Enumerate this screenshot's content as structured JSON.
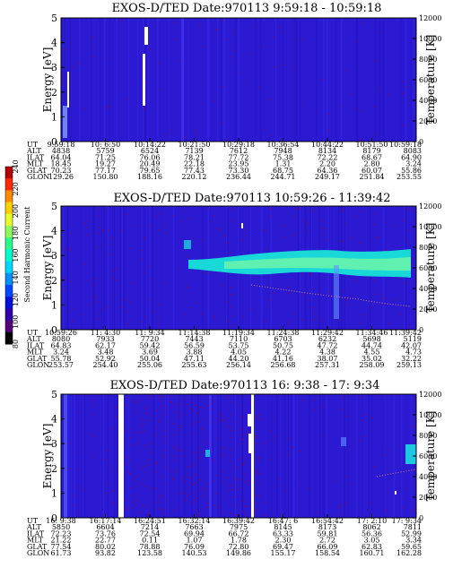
{
  "colorbar": {
    "label": "Second Harmonic Current",
    "ticks": [
      "240",
      "220",
      "200",
      "180",
      "160",
      "140",
      "120",
      "100",
      "80"
    ],
    "colors": [
      "#b40000",
      "#ff2a00",
      "#ff8a00",
      "#ffd000",
      "#eaff2a",
      "#8cff5a",
      "#2aff8c",
      "#00ffd0",
      "#00d8ff",
      "#0090ff",
      "#0048ff",
      "#0010d8",
      "#3000a8",
      "#55007a",
      "#000000"
    ]
  },
  "colors": {
    "background": "#2b1ad2",
    "stripe": "#3a2cf0",
    "noise": "#b00018",
    "cyan": "#20e8e8",
    "green": "#60ffa0",
    "white": "#ffffff"
  },
  "chart_data": [
    {
      "type": "heatmap",
      "title": "EXOS-D/TED   Date:970113   9:59:18 - 10:59:18",
      "ylabel": "Energy [eV]",
      "y2label": "Temperature [K]",
      "ylim": [
        0,
        5
      ],
      "y2lim": [
        0,
        12000
      ],
      "yticks": [
        "0",
        "1",
        "2",
        "3",
        "4",
        "5"
      ],
      "y2ticks": [
        "0",
        "2000",
        "4000",
        "6000",
        "8000",
        "10000",
        "12000"
      ],
      "row_labels": [
        "UT",
        "ALT",
        "ILAT",
        "MLT",
        "GLAT",
        "GLON"
      ],
      "columns": [
        [
          "9:59:18",
          "4838",
          "64.04",
          "18.45",
          "70.23",
          "129.26"
        ],
        [
          "10: 6:50",
          "5759",
          "71.25",
          "19.27",
          "77.17",
          "150.80"
        ],
        [
          "10:14:22",
          "6524",
          "76.06",
          "20.49",
          "79.65",
          "188.16"
        ],
        [
          "10:21:50",
          "7139",
          "78.21",
          "22.18",
          "77.43",
          "220.12"
        ],
        [
          "10:29:18",
          "7612",
          "77.72",
          "23.95",
          "73.30",
          "236.44"
        ],
        [
          "10:36:54",
          "7948",
          "75.38",
          "1.31",
          "68.75",
          "244.71"
        ],
        [
          "10:44:22",
          "8134",
          "72.22",
          "2.20",
          "64.36",
          "249.17"
        ],
        [
          "10:51:50",
          "8179",
          "68.67",
          "2.80",
          "60.07",
          "251.84"
        ],
        [
          "10:59:18",
          "8083",
          "64.90",
          "3.24",
          "55.86",
          "253.55"
        ]
      ]
    },
    {
      "type": "heatmap",
      "title": "EXOS-D/TED   Date:970113   10:59:26 - 11:39:42",
      "ylabel": "Energy [eV]",
      "y2label": "Temperature [K]",
      "ylim": [
        0,
        5
      ],
      "y2lim": [
        0,
        12000
      ],
      "yticks": [
        "0",
        "1",
        "2",
        "3",
        "4",
        "5"
      ],
      "y2ticks": [
        "0",
        "2000",
        "4000",
        "6000",
        "8000",
        "10000",
        "12000"
      ],
      "row_labels": [
        "UT",
        "ALT",
        "ILAT",
        "MLT",
        "GLAT",
        "GLON"
      ],
      "columns": [
        [
          "10:59:26",
          "8080",
          "64.83",
          "3.24",
          "55.78",
          "253.57"
        ],
        [
          "11: 4:30",
          "7933",
          "62.17",
          "3.48",
          "52.92",
          "254.40"
        ],
        [
          "11: 9:34",
          "7720",
          "59.42",
          "3.69",
          "50.04",
          "255.06"
        ],
        [
          "11:14:38",
          "7443",
          "56.59",
          "3.88",
          "47.11",
          "255.63"
        ],
        [
          "11:19:34",
          "7110",
          "53.75",
          "4.05",
          "44.20",
          "256.14"
        ],
        [
          "11:24:38",
          "6703",
          "50.75",
          "4.22",
          "41.16",
          "256.68"
        ],
        [
          "11:29:42",
          "6232",
          "47.72",
          "4.38",
          "38.07",
          "257.31"
        ],
        [
          "11:34:46",
          "5698",
          "44.74",
          "4.55",
          "35.02",
          "258.09"
        ],
        [
          "11:39:42",
          "5119",
          "42.07",
          "4.73",
          "32.22",
          "259.13"
        ]
      ]
    },
    {
      "type": "heatmap",
      "title": "EXOS-D/TED   Date:970113   16: 9:38 - 17: 9:34",
      "ylabel": "Energy [eV]",
      "y2label": "Temperature [K]",
      "ylim": [
        0,
        5
      ],
      "y2lim": [
        0,
        12000
      ],
      "yticks": [
        "0",
        "1",
        "2",
        "3",
        "4",
        "5"
      ],
      "y2ticks": [
        "0",
        "2000",
        "4000",
        "6000",
        "8000",
        "10000",
        "12000"
      ],
      "row_labels": [
        "UT",
        "ALT",
        "ILAT",
        "MLT",
        "GLAT",
        "GLON"
      ],
      "columns": [
        [
          "16: 9:38",
          "5850",
          "72.23",
          "21.22",
          "77.54",
          "61.73"
        ],
        [
          "16:17:14",
          "6604",
          "73.76",
          "22.77",
          "80.02",
          "93.82"
        ],
        [
          "16:24:51",
          "7214",
          "72.54",
          "0.11",
          "78.88",
          "123.58"
        ],
        [
          "16:32:14",
          "7663",
          "69.94",
          "1.07",
          "76.09",
          "140.53"
        ],
        [
          "16:39:42",
          "7975",
          "66.72",
          "1.78",
          "72.80",
          "149.86"
        ],
        [
          "16:47: 6",
          "8145",
          "63.33",
          "2.30",
          "69.47",
          "155.17"
        ],
        [
          "16:54:42",
          "8173",
          "59.81",
          "2.72",
          "66.09",
          "158.54"
        ],
        [
          "17: 2:10",
          "8062",
          "56.36",
          "3.05",
          "62.83",
          "160.71"
        ],
        [
          "17: 9:34",
          "7811",
          "52.99",
          "3.34",
          "59.65",
          "162.28"
        ]
      ]
    }
  ]
}
